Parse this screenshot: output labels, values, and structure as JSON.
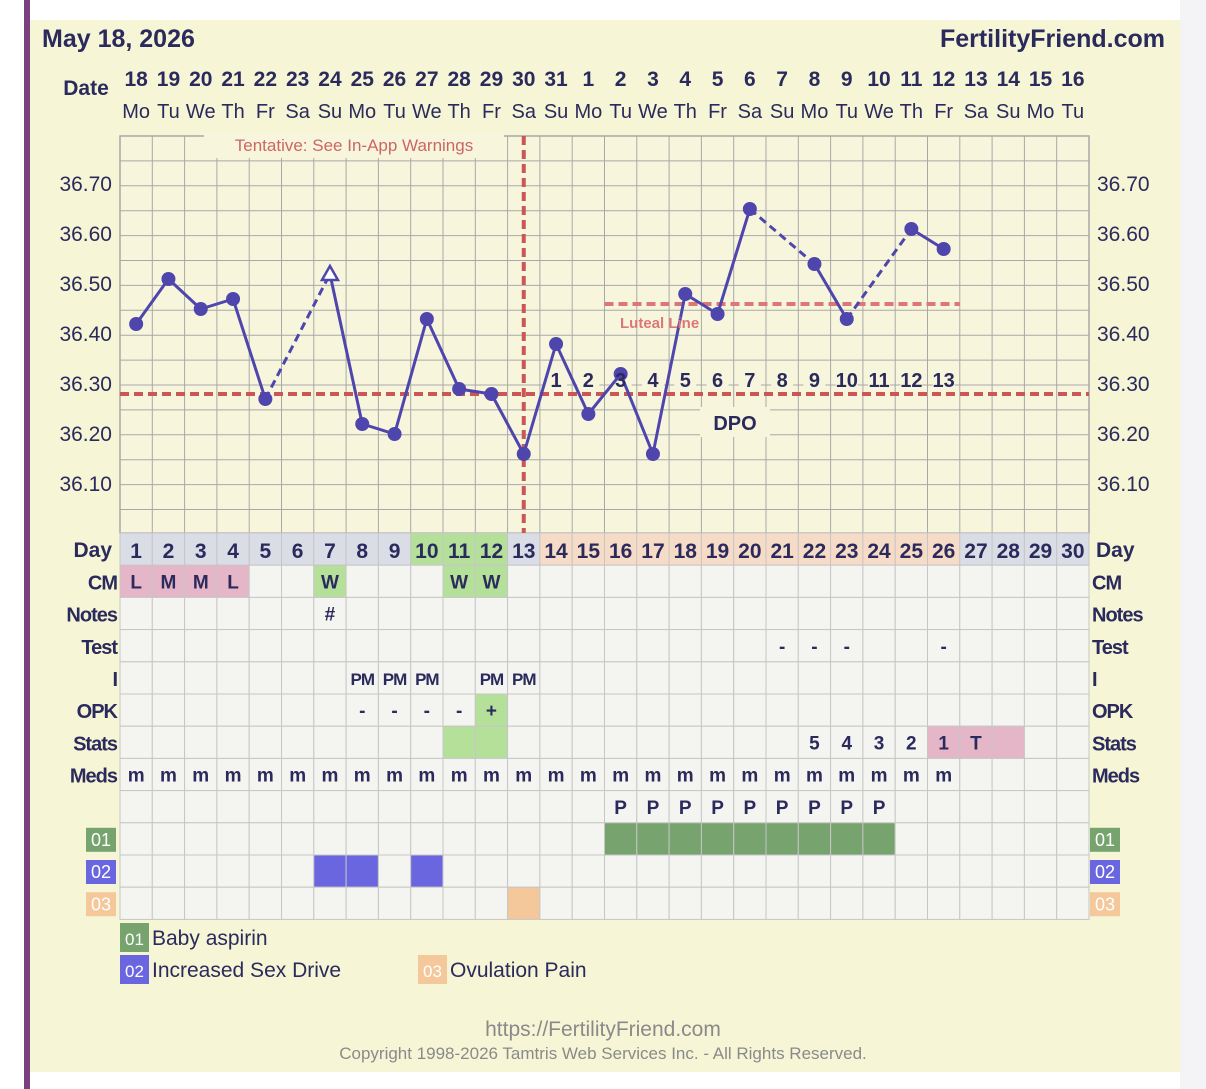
{
  "header": {
    "date": "May 18, 2026",
    "brand": "FertilityFriend.com",
    "date_label": "Date"
  },
  "columns": {
    "dates": [
      "18",
      "19",
      "20",
      "21",
      "22",
      "23",
      "24",
      "25",
      "26",
      "27",
      "28",
      "29",
      "30",
      "31",
      "1",
      "2",
      "3",
      "4",
      "5",
      "6",
      "7",
      "8",
      "9",
      "10",
      "11",
      "12",
      "13",
      "14",
      "15",
      "16"
    ],
    "weekdays": [
      "Mo",
      "Tu",
      "We",
      "Th",
      "Fr",
      "Sa",
      "Su",
      "Mo",
      "Tu",
      "We",
      "Th",
      "Fr",
      "Sa",
      "Su",
      "Mo",
      "Tu",
      "We",
      "Th",
      "Fr",
      "Sa",
      "Su",
      "Mo",
      "Tu",
      "We",
      "Th",
      "Fr",
      "Sa",
      "Su",
      "Mo",
      "Tu"
    ],
    "cycle_days": [
      "1",
      "2",
      "3",
      "4",
      "5",
      "6",
      "7",
      "8",
      "9",
      "10",
      "11",
      "12",
      "13",
      "14",
      "15",
      "16",
      "17",
      "18",
      "19",
      "20",
      "21",
      "22",
      "23",
      "24",
      "25",
      "26",
      "27",
      "28",
      "29",
      "30"
    ]
  },
  "chart_data": {
    "type": "line",
    "ylim": [
      36.0,
      36.8
    ],
    "yticks": [
      "36.70",
      "36.60",
      "36.50",
      "36.40",
      "36.30",
      "36.20",
      "36.10"
    ],
    "x": [
      1,
      2,
      3,
      4,
      5,
      6,
      7,
      8,
      9,
      10,
      11,
      12,
      13,
      14,
      15,
      16,
      17,
      18,
      19,
      20,
      21,
      22,
      23,
      24,
      25,
      26,
      27,
      28,
      29,
      30
    ],
    "temperatures": [
      36.42,
      36.51,
      36.45,
      36.47,
      36.27,
      null,
      36.52,
      36.22,
      36.2,
      36.43,
      36.29,
      36.28,
      36.16,
      36.38,
      36.24,
      36.32,
      36.16,
      36.48,
      36.44,
      36.65,
      null,
      36.54,
      36.43,
      null,
      36.61,
      36.57,
      null,
      null,
      null,
      null
    ],
    "open_marker_days": [
      7
    ],
    "dashed_segments": [
      [
        5,
        7
      ],
      [
        20,
        22
      ],
      [
        23,
        25
      ]
    ],
    "coverline": 36.28,
    "ovulation_day": 13,
    "luteal_line": {
      "value": 36.46,
      "from_day": 16,
      "to_day": 26,
      "label": "Luteal Line"
    },
    "dpo_labels": [
      "1",
      "2",
      "3",
      "4",
      "5",
      "6",
      "7",
      "8",
      "9",
      "10",
      "11",
      "12",
      "13"
    ],
    "dpo_text": "DPO",
    "warning": "Tentative: See In-App Warnings",
    "colors": {
      "line": "#4e45ad",
      "coverline": "#cc5555",
      "grid": "#a8a8a8",
      "plot_bg": "#f7f6dc"
    }
  },
  "rows": {
    "day_label": "Day",
    "labels": [
      "CM",
      "Notes",
      "Test",
      "I",
      "OPK",
      "Stats",
      "Meds",
      "",
      "01",
      "02",
      "03"
    ],
    "cm": {
      "1": "L",
      "2": "M",
      "3": "M",
      "4": "L",
      "7": "W",
      "11": "W",
      "12": "W"
    },
    "notes": {
      "7": "#"
    },
    "test": {
      "21": "-",
      "22": "-",
      "23": "-",
      "26": "-"
    },
    "intercourse": {
      "8": "PM",
      "9": "PM",
      "10": "PM",
      "12": "PM",
      "13": "PM"
    },
    "opk": {
      "8": "-",
      "9": "-",
      "10": "-",
      "11": "-",
      "12": "+"
    },
    "stats": {
      "22": "5",
      "23": "4",
      "24": "3",
      "25": "2",
      "26": "1",
      "27": "T"
    },
    "meds": {
      "1": "m",
      "2": "m",
      "3": "m",
      "4": "m",
      "5": "m",
      "6": "m",
      "7": "m",
      "8": "m",
      "9": "m",
      "10": "m",
      "11": "m",
      "12": "m",
      "13": "m",
      "14": "m",
      "15": "m",
      "16": "m",
      "17": "m",
      "18": "m",
      "19": "m",
      "20": "m",
      "21": "m",
      "22": "m",
      "23": "m",
      "24": "m",
      "25": "m",
      "26": "m"
    },
    "meds2": {
      "16": "P",
      "17": "P",
      "18": "P",
      "19": "P",
      "20": "P",
      "21": "P",
      "22": "P",
      "23": "P",
      "24": "P"
    },
    "custom01_days": [
      16,
      17,
      18,
      19,
      20,
      21,
      22,
      23,
      24
    ],
    "custom02_days": [
      7,
      8,
      10
    ],
    "custom03_days": [
      13
    ],
    "colors": {
      "cm": "#e5b6c8",
      "fertile": "#b5e09a",
      "luteal_day": "#f6dcc6",
      "late_day": "#dcdcea",
      "stats_pink": "#e5b6c8",
      "custom01": "#76a36e",
      "custom02": "#6a66e0",
      "custom03": "#f4c89a",
      "cell_bg": "#f4f4f0"
    }
  },
  "legend": [
    {
      "code": "01",
      "label": "Baby aspirin",
      "color": "#76a36e"
    },
    {
      "code": "02",
      "label": "Increased Sex Drive",
      "color": "#6a66e0"
    },
    {
      "code": "03",
      "label": "Ovulation Pain",
      "color": "#f4c89a"
    }
  ],
  "footer": {
    "url": "https://FertilityFriend.com",
    "copyright": "Copyright 1998-2026 Tamtris Web Services Inc. - All Rights Reserved."
  }
}
